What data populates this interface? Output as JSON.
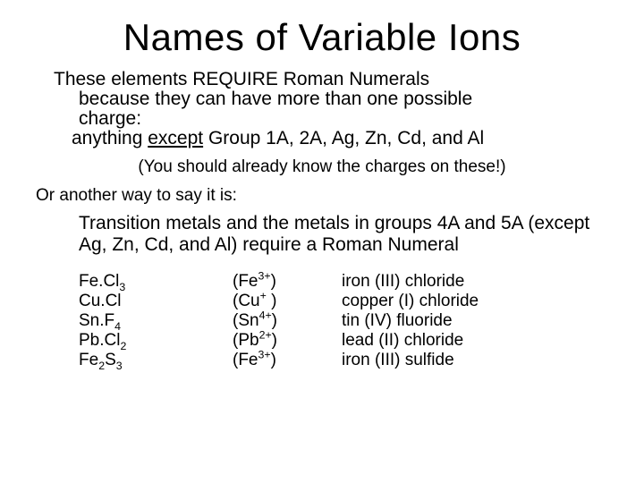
{
  "title": "Names of Variable Ions",
  "intro": {
    "line1": "These elements REQUIRE Roman Numerals",
    "line2a": "because they can have more than one possible",
    "line2b": "charge:",
    "line3a": "anything ",
    "except": "except",
    "line3b": " Group 1A, 2A, Ag, Zn, Cd, and Al"
  },
  "note": "(You should already know the charges on these!)",
  "or_line": "Or another way to say it is:",
  "rule": "Transition metals and the metals in groups 4A and 5A (except Ag, Zn, Cd, and Al) require a Roman Numeral",
  "examples": [
    {
      "formula_html": "Fe.Cl<sub>3</sub>",
      "ion_html": "(Fe<sup>3+</sup>)",
      "name": "iron (III) chloride"
    },
    {
      "formula_html": "Cu.Cl",
      "ion_html": "(Cu<sup>+</sup> )",
      "name": "copper (I) chloride"
    },
    {
      "formula_html": "Sn.F<sub>4</sub>",
      "ion_html": "(Sn<sup>4+</sup>)",
      "name": "tin (IV) fluoride"
    },
    {
      "formula_html": "Pb.Cl<sub>2</sub>",
      "ion_html": "(Pb<sup>2+</sup>)",
      "name": "lead (II) chloride"
    },
    {
      "formula_html": "Fe<sub>2</sub>S<sub>3</sub>",
      "ion_html": "(Fe<sup>3+</sup>)",
      "name": "iron (III) sulfide"
    }
  ],
  "colors": {
    "background": "#ffffff",
    "text": "#000000"
  },
  "fonts": {
    "family": "Comic Sans MS",
    "title_size_pt": 42,
    "body_size_pt": 21,
    "note_size_pt": 19,
    "examples_size_pt": 19
  }
}
